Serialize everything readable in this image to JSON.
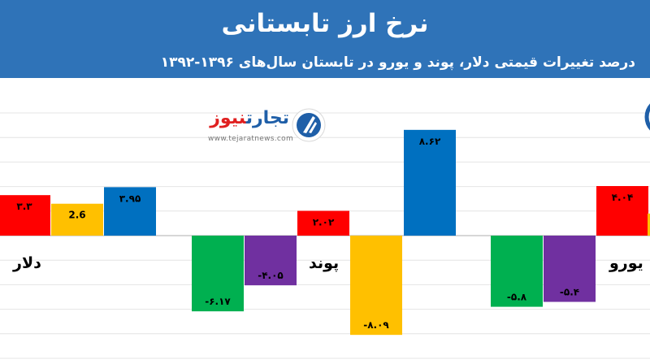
{
  "header": {
    "title": "نرخ ارز تابستانی",
    "subtitle": "درصد تغییرات قیمتی دلار، پوند و یورو در تابستان سال‌های ۱۳۹۶-۱۳۹۲"
  },
  "logo": {
    "brand_part1": "تجارت",
    "brand_part2": "نیوز",
    "url": "www.tejaratnews.com"
  },
  "colors": {
    "header_bg": "#2f73b8",
    "red": "#ff0000",
    "yellow": "#ffc000",
    "blue": "#0070c0",
    "green": "#00b050",
    "purple": "#7030a0"
  },
  "chart_data": {
    "type": "bar",
    "title": "",
    "xlabel": "",
    "ylabel": "",
    "grid": "horizontal",
    "legend": "none",
    "ylim": [
      -10,
      10
    ],
    "categories": [
      "دلار",
      "پوند",
      "یورو"
    ],
    "bars": [
      {
        "category": "دلار",
        "value": 3.3,
        "label": "۳.۳",
        "color": "#ff0000"
      },
      {
        "category": "دلار",
        "value": 2.6,
        "label": "2.6",
        "color": "#ffc000"
      },
      {
        "category": "دلار",
        "value": 3.95,
        "label": "۳.۹۵",
        "color": "#0070c0"
      },
      {
        "category": "پوند",
        "value": -6.17,
        "label": "-۶.۱۷",
        "color": "#00b050"
      },
      {
        "category": "پوند",
        "value": -4.05,
        "label": "-۴.۰۵",
        "color": "#7030a0"
      },
      {
        "category": "پوند",
        "value": 2.02,
        "label": "۲.۰۲",
        "color": "#ff0000"
      },
      {
        "category": "پوند",
        "value": -8.09,
        "label": "-۸.۰۹",
        "color": "#ffc000"
      },
      {
        "category": "پوند",
        "value": 8.62,
        "label": "۸.۶۲",
        "color": "#0070c0"
      },
      {
        "category": "یورو",
        "value": -5.8,
        "label": "-۵.۸",
        "color": "#00b050"
      },
      {
        "category": "یورو",
        "value": -5.4,
        "label": "-۵.۴",
        "color": "#7030a0"
      },
      {
        "category": "یورو",
        "value": 4.04,
        "label": "۴.۰۴",
        "color": "#ff0000"
      }
    ]
  }
}
